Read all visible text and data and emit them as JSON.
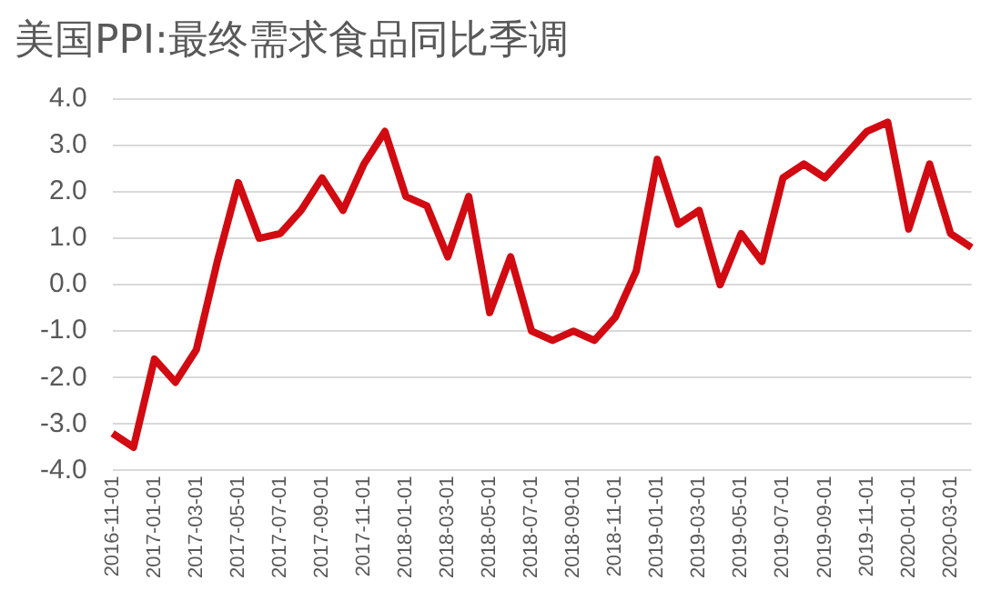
{
  "chart_data": {
    "type": "line",
    "title": "美国PPI:最终需求食品同比季调",
    "categories": [
      "2016-11-01",
      null,
      "2017-01-01",
      null,
      "2017-03-01",
      null,
      "2017-05-01",
      null,
      "2017-07-01",
      null,
      "2017-09-01",
      null,
      "2017-11-01",
      null,
      "2018-01-01",
      null,
      "2018-03-01",
      null,
      "2018-05-01",
      null,
      "2018-07-01",
      null,
      "2018-09-01",
      null,
      "2018-11-01",
      null,
      "2019-01-01",
      null,
      "2019-03-01",
      null,
      "2019-05-01",
      null,
      "2019-07-01",
      null,
      "2019-09-01",
      null,
      "2019-11-01",
      null,
      "2020-01-01",
      null,
      "2020-03-01",
      null
    ],
    "series": [
      {
        "color": "#d20a11",
        "values": [
          -3.2,
          -3.5,
          -1.6,
          -2.1,
          -1.4,
          0.5,
          2.2,
          1.0,
          1.1,
          1.6,
          2.3,
          1.6,
          2.6,
          3.3,
          1.9,
          1.7,
          0.6,
          1.9,
          -0.6,
          0.6,
          -1.0,
          -1.2,
          -1.0,
          -1.2,
          -0.7,
          0.3,
          2.7,
          1.3,
          1.6,
          0.0,
          1.1,
          0.5,
          2.3,
          2.6,
          2.3,
          2.8,
          3.3,
          3.5,
          1.2,
          2.6,
          1.1,
          0.8
        ]
      }
    ],
    "ylim": [
      -4,
      4
    ],
    "yticks": [
      {
        "value": -4,
        "label": "-4.0"
      },
      {
        "value": -3,
        "label": "-3.0"
      },
      {
        "value": -2,
        "label": "-2.0"
      },
      {
        "value": -1,
        "label": "-1.0"
      },
      {
        "value": 0,
        "label": "0.0"
      },
      {
        "value": 1,
        "label": "1.0"
      },
      {
        "value": 2,
        "label": "2.0"
      },
      {
        "value": 3,
        "label": "3.0"
      },
      {
        "value": 4,
        "label": "4.0"
      }
    ],
    "grid": "y",
    "legend": false,
    "marker": "none",
    "line_style": "solid"
  }
}
